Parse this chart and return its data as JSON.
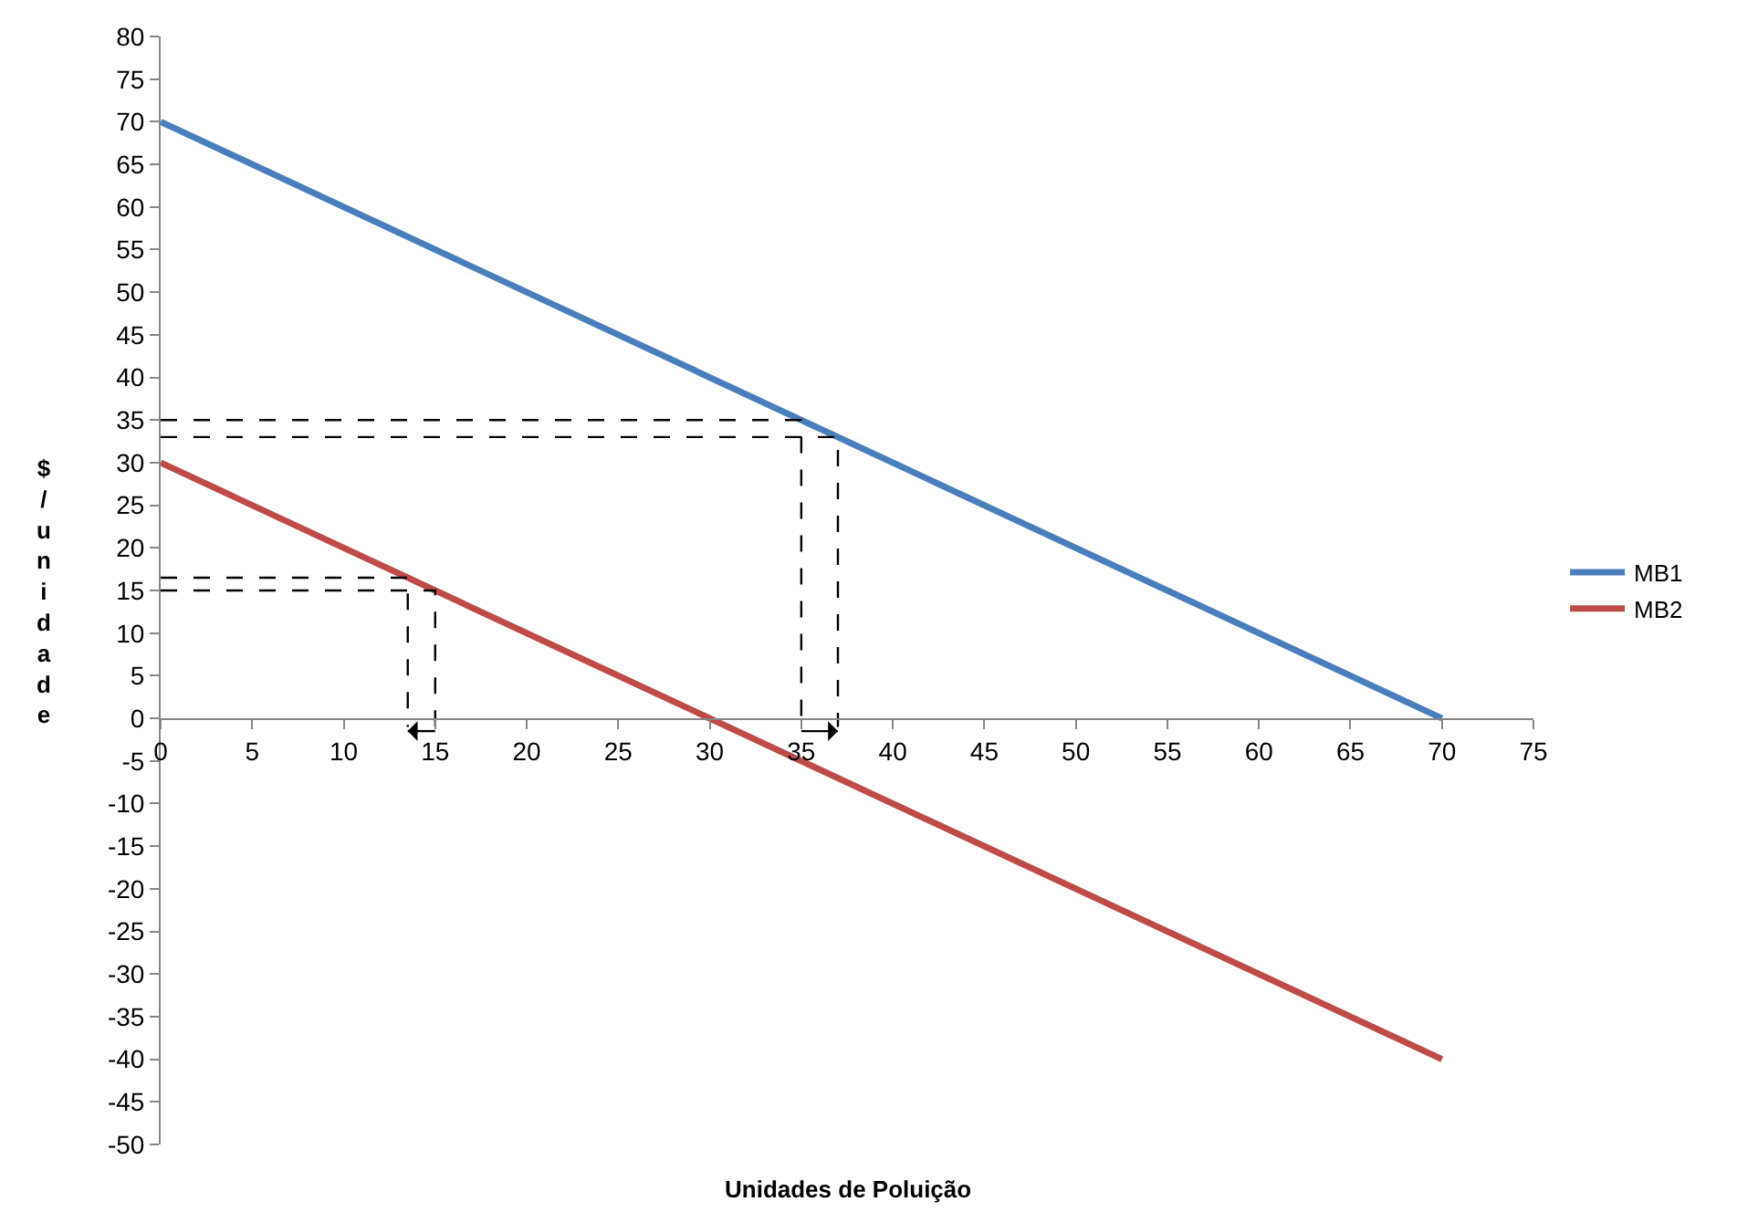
{
  "chart_data": {
    "type": "line",
    "xlabel": "Unidades de Poluição",
    "ylabel": "$/unidade",
    "xlim": [
      0,
      75
    ],
    "xticks": [
      0,
      5,
      10,
      15,
      20,
      25,
      30,
      35,
      40,
      45,
      50,
      55,
      60,
      65,
      70,
      75
    ],
    "ylim": [
      -50,
      80
    ],
    "yticks": [
      -50,
      -45,
      -40,
      -35,
      -30,
      -25,
      -20,
      -15,
      -10,
      -5,
      0,
      5,
      10,
      15,
      20,
      25,
      30,
      35,
      40,
      45,
      50,
      55,
      60,
      65,
      70,
      75,
      80
    ],
    "legend": "right",
    "marker": "none",
    "line_style": "solid",
    "series": [
      {
        "name": "MB1",
        "color": "#4a7ebb",
        "x": [
          0,
          70
        ],
        "values": [
          70,
          0
        ]
      },
      {
        "name": "MB2",
        "color": "#be4b48",
        "x": [
          0,
          70
        ],
        "values": [
          30,
          -40
        ]
      },
      {
        "color": "#000000",
        "line_style": "dashed",
        "x": [
          0,
          35,
          35
        ],
        "values": [
          35,
          35,
          -1
        ]
      },
      {
        "color": "#000000",
        "line_style": "dashed",
        "x": [
          0,
          37,
          37
        ],
        "values": [
          33,
          33,
          -1
        ]
      },
      {
        "color": "#000000",
        "line_style": "dashed",
        "x": [
          0,
          13.5,
          13.5
        ],
        "values": [
          16.5,
          16.5,
          -1
        ]
      },
      {
        "color": "#000000",
        "line_style": "dashed",
        "x": [
          0,
          15,
          15
        ],
        "values": [
          15,
          15,
          -1
        ]
      },
      {
        "color": "#000000",
        "marker": "triangle",
        "x": [
          15,
          13.5
        ],
        "values": [
          -1.5,
          -1.5
        ]
      },
      {
        "color": "#000000",
        "marker": "triangle",
        "x": [
          35,
          37
        ],
        "values": [
          -1.5,
          -1.5
        ]
      }
    ]
  }
}
